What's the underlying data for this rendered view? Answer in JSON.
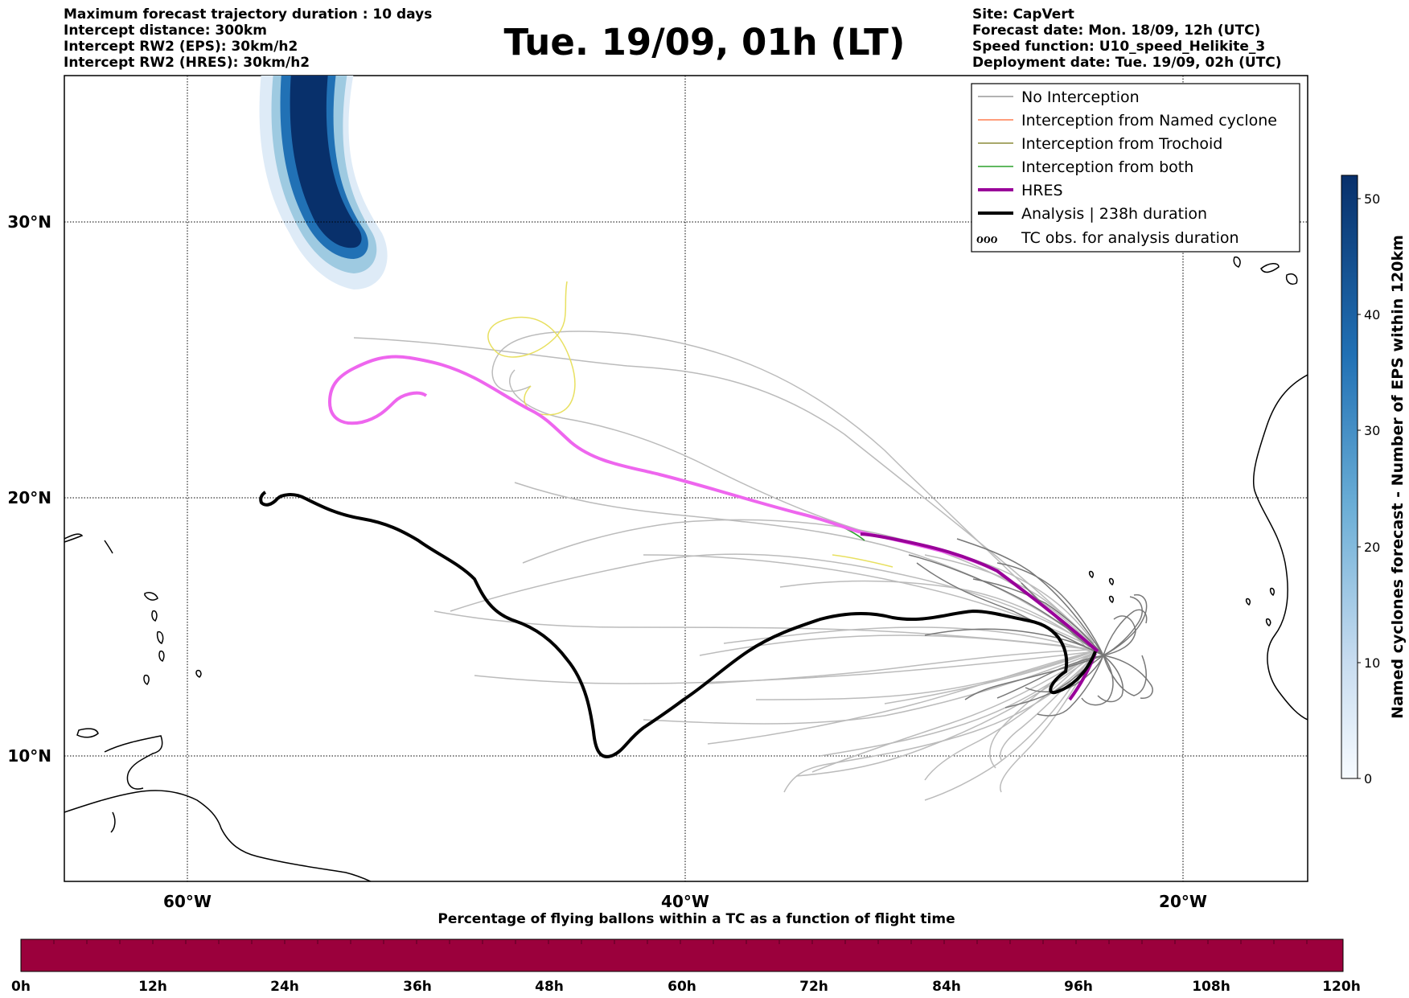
{
  "header": {
    "left": [
      "Maximum forecast trajectory duration : 10 days",
      "Intercept distance: 300km",
      "Intercept RW2 (EPS):  30km/h2",
      "Intercept RW2 (HRES): 30km/h2"
    ],
    "title": "Tue. 19/09, 01h (LT)",
    "right": [
      "Site: CapVert",
      "Forecast date: Mon. 18/09, 12h (UTC)",
      "Speed function: U10_speed_Helikite_3",
      "Deployment date: Tue. 19/09, 02h (UTC)"
    ]
  },
  "map": {
    "lat_labels": [
      "30°N",
      "20°N",
      "10°N"
    ],
    "lon_labels": [
      "60°W",
      "40°W",
      "20°W"
    ],
    "legend": [
      {
        "label": "No Interception",
        "color": "#999999"
      },
      {
        "label": "Interception from Named cyclone",
        "color": "#ff7f50"
      },
      {
        "label": "Interception from Trochoid",
        "color": "#8b8b3a"
      },
      {
        "label": "Interception from both",
        "color": "#2ca02c"
      },
      {
        "label": "HRES",
        "color": "#990099"
      },
      {
        "label": "Analysis | 238h duration",
        "color": "#000000"
      },
      {
        "label": "TC obs. for analysis duration",
        "color": "#000000"
      }
    ],
    "hres_color": "#ee66ee",
    "hres_dark_color": "#990099",
    "analysis_color": "#000000",
    "eps_color": "#bbbbbb"
  },
  "colorbar_right": {
    "label": "Named cyclones forecast - Number of EPS within 120km",
    "ticks": [
      "0",
      "10",
      "20",
      "30",
      "40",
      "50"
    ]
  },
  "colorbar_bottom": {
    "title": "Percentage of flying ballons within a TC as a function of flight time",
    "ticks": [
      "0h",
      "12h",
      "24h",
      "36h",
      "48h",
      "60h",
      "72h",
      "84h",
      "96h",
      "108h",
      "120h"
    ],
    "color": "#9b003c"
  }
}
